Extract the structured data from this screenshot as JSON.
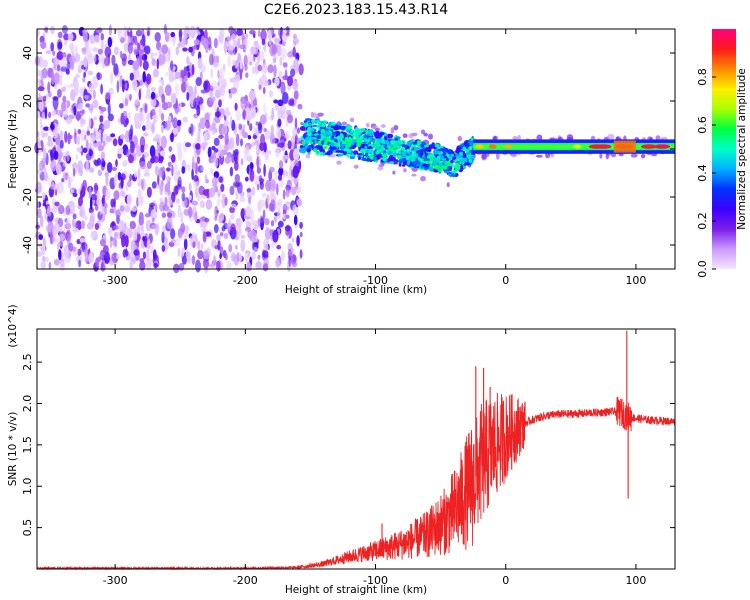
{
  "title": "C2E6.2023.183.15.43.R14",
  "chart_data": [
    {
      "type": "heatmap",
      "xlabel": "Height of straight line (km)",
      "ylabel": "Frequency (Hz)",
      "xlim": [
        -360,
        130
      ],
      "ylim": [
        -50,
        50
      ],
      "x_ticks": [
        -300,
        -200,
        -100,
        0,
        100
      ],
      "y_ticks": [
        -40,
        -20,
        0,
        20,
        40
      ],
      "colorbar": {
        "label": "Normalized spectral amplitude",
        "range": [
          0,
          1
        ],
        "ticks": [
          "0.0",
          "0.2",
          "0.4",
          "0.6",
          "0.8"
        ],
        "colors": [
          "#f4e8ff",
          "#cc99ff",
          "#7a1fe8",
          "#3a00ff",
          "#0033ff",
          "#00b0ff",
          "#00ffc8",
          "#00ff40",
          "#aaff00",
          "#ffee00",
          "#ff8800",
          "#ff1a1a",
          "#ff0080"
        ]
      },
      "noise_region": {
        "x_range": [
          -360,
          -157
        ],
        "y_range": [
          -50,
          50
        ]
      },
      "signal_track": [
        {
          "x": -157,
          "y": 6
        },
        {
          "x": -130,
          "y": 4
        },
        {
          "x": -100,
          "y": 1
        },
        {
          "x": -70,
          "y": -2
        },
        {
          "x": -50,
          "y": -4
        },
        {
          "x": -40,
          "y": -7
        },
        {
          "x": -33,
          "y": -3
        },
        {
          "x": -25,
          "y": 0
        },
        {
          "x": 0,
          "y": 1
        },
        {
          "x": 50,
          "y": 1
        },
        {
          "x": 100,
          "y": 1
        },
        {
          "x": 130,
          "y": 1
        }
      ],
      "grid": false
    },
    {
      "type": "line",
      "xlabel": "Height of straight line (km)",
      "ylabel": "SNR (10 * v/v)",
      "y_multiplier": "(x10^4)",
      "xlim": [
        -360,
        130
      ],
      "ylim": [
        0,
        2.9
      ],
      "x_ticks": [
        -300,
        -200,
        -100,
        0,
        100
      ],
      "y_ticks": [
        "0.5",
        "1.0",
        "1.5",
        "2.0",
        "2.5"
      ],
      "series": [
        {
          "color": "#ee2222",
          "x": [
            -360,
            -300,
            -200,
            -160,
            -140,
            -120,
            -100,
            -80,
            -60,
            -45,
            -35,
            -25,
            -18,
            -10,
            0,
            10,
            20,
            30,
            40,
            60,
            80,
            88,
            93,
            100,
            110,
            120,
            130
          ],
          "y": [
            0.01,
            0.01,
            0.01,
            0.02,
            0.06,
            0.15,
            0.22,
            0.3,
            0.42,
            0.6,
            0.8,
            1.05,
            1.3,
            1.45,
            1.6,
            1.72,
            1.8,
            1.85,
            1.87,
            1.88,
            1.9,
            1.9,
            1.85,
            1.82,
            1.8,
            1.79,
            1.78
          ]
        }
      ],
      "spikes": [
        {
          "x": -95,
          "y": 0.55
        },
        {
          "x": -65,
          "y": 0.6
        },
        {
          "x": -40,
          "y": 0.9
        },
        {
          "x": -29,
          "y": 1.45
        },
        {
          "x": -23,
          "y": 2.45
        },
        {
          "x": -17,
          "y": 2.43
        },
        {
          "x": -12,
          "y": 2.2
        },
        {
          "x": 93,
          "y": 2.88
        },
        {
          "x": 94,
          "y": 0.85
        }
      ],
      "grid": false
    }
  ]
}
